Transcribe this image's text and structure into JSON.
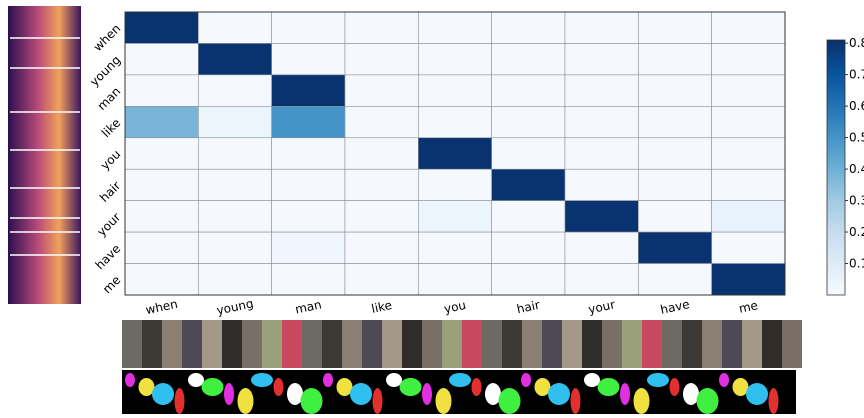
{
  "chart_data": {
    "type": "heatmap",
    "x_categories": [
      "when",
      "young",
      "man",
      "like",
      "you",
      "hair",
      "your",
      "have",
      "me"
    ],
    "y_categories": [
      "when",
      "young",
      "man",
      "like",
      "you",
      "hair",
      "your",
      "have",
      "me"
    ],
    "values": [
      [
        0.8,
        0.01,
        0.01,
        0.01,
        0.01,
        0.01,
        0.01,
        0.01,
        0.01
      ],
      [
        0.01,
        0.8,
        0.01,
        0.01,
        0.01,
        0.01,
        0.01,
        0.01,
        0.01
      ],
      [
        0.01,
        0.01,
        0.8,
        0.01,
        0.01,
        0.01,
        0.01,
        0.01,
        0.01
      ],
      [
        0.38,
        0.04,
        0.5,
        0.01,
        0.01,
        0.01,
        0.01,
        0.01,
        0.01
      ],
      [
        0.01,
        0.01,
        0.01,
        0.01,
        0.8,
        0.01,
        0.01,
        0.01,
        0.01
      ],
      [
        0.01,
        0.01,
        0.01,
        0.01,
        0.01,
        0.8,
        0.01,
        0.01,
        0.01
      ],
      [
        0.01,
        0.01,
        0.01,
        0.01,
        0.04,
        0.01,
        0.8,
        0.01,
        0.06
      ],
      [
        0.01,
        0.01,
        0.03,
        0.01,
        0.01,
        0.01,
        0.01,
        0.8,
        0.01
      ],
      [
        0.01,
        0.01,
        0.01,
        0.01,
        0.01,
        0.01,
        0.01,
        0.01,
        0.8
      ]
    ],
    "colormap": "Blues",
    "clim": [
      0,
      0.81
    ],
    "cticks": [
      0.1,
      0.2,
      0.3,
      0.4,
      0.5,
      0.6,
      0.7,
      0.8
    ],
    "grid": true
  }
}
